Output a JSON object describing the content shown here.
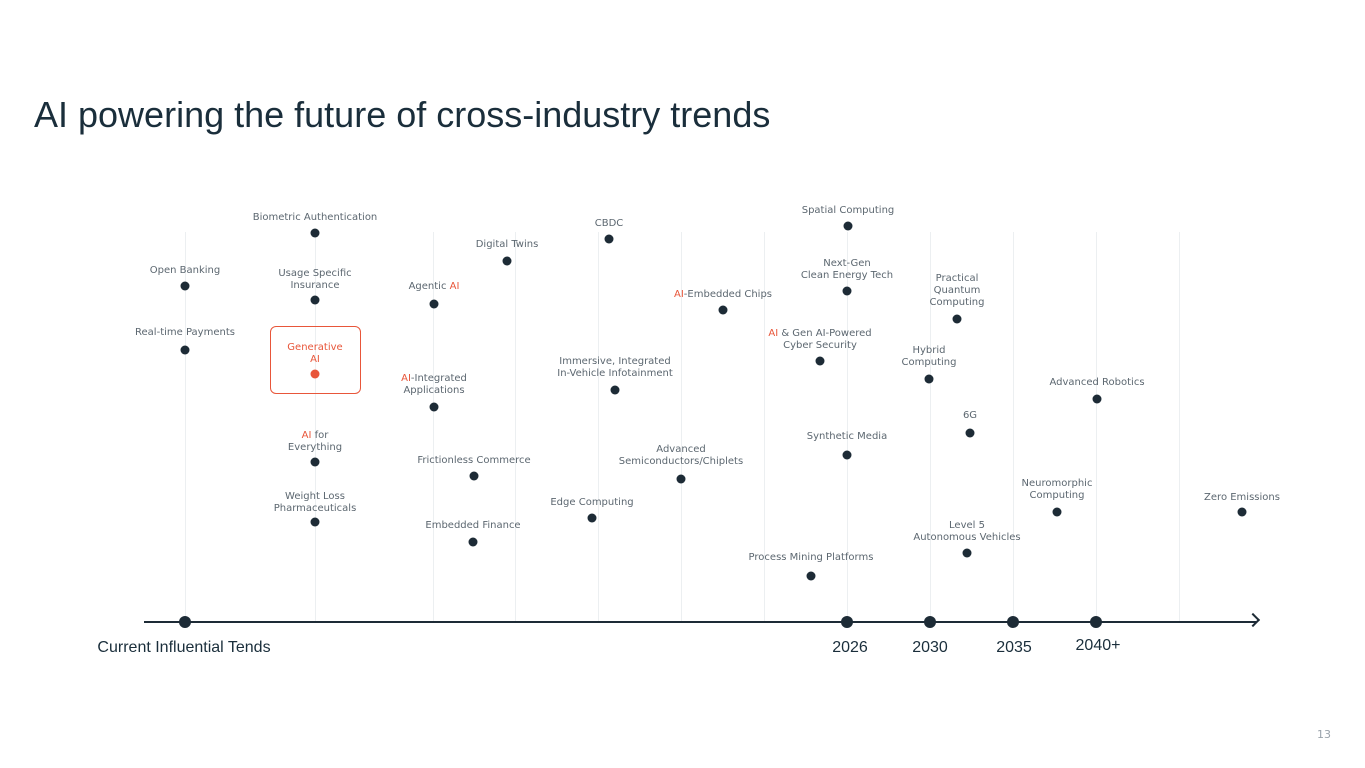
{
  "title": "AI powering the future of cross-industry trends",
  "page_number": "13",
  "timeline": {
    "start_label": "Current Influential Tends",
    "years": [
      "2026",
      "2030",
      "2035",
      "2040+"
    ]
  },
  "trends": [
    {
      "id": "open-banking",
      "pre": "",
      "ai": "",
      "post": "Open Banking"
    },
    {
      "id": "real-time-payments",
      "pre": "",
      "ai": "",
      "post": "Real-time Payments"
    },
    {
      "id": "biometric-authentication",
      "pre": "",
      "ai": "",
      "post": "Biometric Authentication"
    },
    {
      "id": "usage-specific-insurance",
      "pre": "",
      "ai": "",
      "post": "Usage Specific\nInsurance"
    },
    {
      "id": "generative-ai",
      "pre": "",
      "ai": "",
      "post": "Generative\nAI"
    },
    {
      "id": "ai-for-everything",
      "pre": "",
      "ai": "AI",
      "post": " for\nEverything"
    },
    {
      "id": "weight-loss-pharmaceuticals",
      "pre": "",
      "ai": "",
      "post": "Weight Loss\nPharmaceuticals"
    },
    {
      "id": "agentic-ai",
      "pre": "Agentic ",
      "ai": "AI",
      "post": ""
    },
    {
      "id": "ai-integrated-applications",
      "pre": "",
      "ai": "AI",
      "post": "-Integrated\nApplications"
    },
    {
      "id": "digital-twins",
      "pre": "",
      "ai": "",
      "post": "Digital Twins"
    },
    {
      "id": "frictionless-commerce",
      "pre": "",
      "ai": "",
      "post": "Frictionless Commerce"
    },
    {
      "id": "embedded-finance",
      "pre": "",
      "ai": "",
      "post": "Embedded Finance"
    },
    {
      "id": "cbdc",
      "pre": "",
      "ai": "",
      "post": "CBDC"
    },
    {
      "id": "immersive-infotainment",
      "pre": "",
      "ai": "",
      "post": "Immersive, Integrated\nIn-Vehicle Infotainment"
    },
    {
      "id": "edge-computing",
      "pre": "",
      "ai": "",
      "post": "Edge Computing"
    },
    {
      "id": "advanced-semiconductors",
      "pre": "",
      "ai": "",
      "post": "Advanced\nSemiconductors/Chiplets"
    },
    {
      "id": "ai-embedded-chips",
      "pre": "",
      "ai": "AI",
      "post": "-Embedded Chips"
    },
    {
      "id": "spatial-computing",
      "pre": "",
      "ai": "",
      "post": "Spatial Computing"
    },
    {
      "id": "clean-energy-tech",
      "pre": "",
      "ai": "",
      "post": "Next-Gen\nClean Energy Tech"
    },
    {
      "id": "ai-cyber-security",
      "pre": "",
      "ai": "AI",
      "post": " & Gen AI-Powered\nCyber Security"
    },
    {
      "id": "synthetic-media",
      "pre": "",
      "ai": "",
      "post": "Synthetic Media"
    },
    {
      "id": "process-mining-platforms",
      "pre": "",
      "ai": "",
      "post": "Process Mining Platforms"
    },
    {
      "id": "practical-quantum-computing",
      "pre": "",
      "ai": "",
      "post": "Practical\nQuantum\nComputing"
    },
    {
      "id": "hybrid-computing",
      "pre": "",
      "ai": "",
      "post": "Hybrid\nComputing"
    },
    {
      "id": "6g",
      "pre": "",
      "ai": "",
      "post": "6G"
    },
    {
      "id": "level-5-autonomous-vehicles",
      "pre": "",
      "ai": "",
      "post": "Level 5\nAutonomous Vehicles"
    },
    {
      "id": "neuromorphic-computing",
      "pre": "",
      "ai": "",
      "post": "Neuromorphic\nComputing"
    },
    {
      "id": "advanced-robotics",
      "pre": "",
      "ai": "",
      "post": "Advanced Robotics"
    },
    {
      "id": "zero-emissions",
      "pre": "",
      "ai": "",
      "post": "Zero Emissions"
    }
  ],
  "colors": {
    "accent": "#e8563a",
    "dark": "#1d2b36",
    "label": "#5c6770"
  }
}
